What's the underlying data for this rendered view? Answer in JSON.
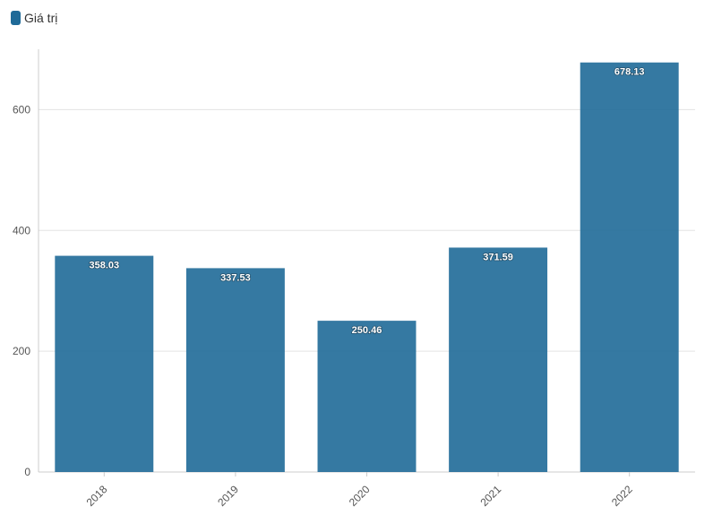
{
  "legend": {
    "label": "Giá trị"
  },
  "colors": {
    "bar": "#1f6a98",
    "grid": "#e3e3e3",
    "axis": "#cccccc"
  },
  "chart_data": {
    "type": "bar",
    "categories": [
      "2018",
      "2019",
      "2020",
      "2021",
      "2022"
    ],
    "series": [
      {
        "name": "Giá trị",
        "values": [
          358.03,
          337.53,
          250.46,
          371.59,
          678.13
        ]
      }
    ],
    "data_labels": [
      "358.03",
      "337.53",
      "250.46",
      "371.59",
      "678.13"
    ],
    "y_ticks": [
      0,
      200,
      400,
      600
    ],
    "ylim": [
      0,
      700
    ],
    "grid": true,
    "legend_position": "top-left",
    "x_tick_rotation": -45
  }
}
